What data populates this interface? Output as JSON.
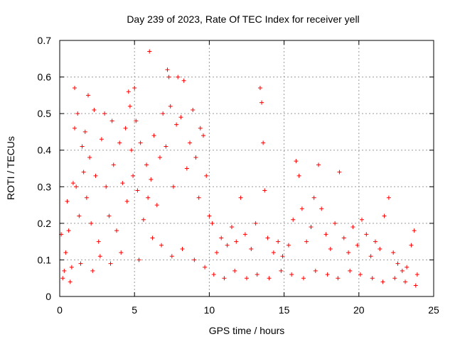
{
  "chart_data": {
    "type": "scatter",
    "title": "Day 239 of 2023, Rate Of TEC Index for receiver yell",
    "xlabel": "GPS time / hours",
    "ylabel": "ROTI / TECUs",
    "xlim": [
      0,
      25
    ],
    "ylim": [
      0,
      0.7
    ],
    "xticks": [
      "0",
      "5",
      "10",
      "15",
      "20",
      "25"
    ],
    "yticks": [
      "0",
      "0.1",
      "0.2",
      "0.3",
      "0.4",
      "0.5",
      "0.6",
      "0.7"
    ],
    "grid": true,
    "marker": "+",
    "color": "#ff0000",
    "series": [
      {
        "points": [
          [
            0.1,
            0.17
          ],
          [
            0.2,
            0.05
          ],
          [
            0.4,
            0.12
          ],
          [
            0.5,
            0.26
          ],
          [
            0.6,
            0.18
          ],
          [
            0.8,
            0.08
          ],
          [
            0.9,
            0.31
          ],
          [
            1.0,
            0.46
          ],
          [
            1.0,
            0.57
          ],
          [
            1.1,
            0.3
          ],
          [
            1.2,
            0.5
          ],
          [
            1.3,
            0.22
          ],
          [
            1.5,
            0.41
          ],
          [
            1.6,
            0.34
          ],
          [
            1.7,
            0.45
          ],
          [
            1.8,
            0.27
          ],
          [
            1.9,
            0.55
          ],
          [
            2.0,
            0.38
          ],
          [
            2.1,
            0.2
          ],
          [
            2.3,
            0.51
          ],
          [
            2.4,
            0.33
          ],
          [
            2.6,
            0.15
          ],
          [
            2.8,
            0.43
          ],
          [
            3.0,
            0.5
          ],
          [
            3.1,
            0.3
          ],
          [
            3.3,
            0.22
          ],
          [
            3.5,
            0.48
          ],
          [
            3.6,
            0.36
          ],
          [
            3.8,
            0.18
          ],
          [
            4.0,
            0.42
          ],
          [
            4.2,
            0.31
          ],
          [
            4.4,
            0.46
          ],
          [
            4.5,
            0.26
          ],
          [
            4.6,
            0.56
          ],
          [
            4.7,
            0.52
          ],
          [
            4.8,
            0.4
          ],
          [
            4.9,
            0.33
          ],
          [
            5.0,
            0.57
          ],
          [
            5.1,
            0.48
          ],
          [
            5.2,
            0.29
          ],
          [
            5.4,
            0.42
          ],
          [
            5.6,
            0.21
          ],
          [
            5.8,
            0.36
          ],
          [
            5.9,
            0.27
          ],
          [
            6.0,
            0.67
          ],
          [
            6.1,
            0.32
          ],
          [
            6.3,
            0.44
          ],
          [
            6.5,
            0.25
          ],
          [
            6.7,
            0.38
          ],
          [
            6.9,
            0.5
          ],
          [
            7.1,
            0.41
          ],
          [
            7.2,
            0.62
          ],
          [
            7.3,
            0.6
          ],
          [
            7.4,
            0.52
          ],
          [
            7.6,
            0.3
          ],
          [
            7.8,
            0.47
          ],
          [
            7.9,
            0.6
          ],
          [
            8.1,
            0.49
          ],
          [
            8.3,
            0.59
          ],
          [
            8.5,
            0.35
          ],
          [
            8.7,
            0.42
          ],
          [
            8.9,
            0.51
          ],
          [
            9.1,
            0.38
          ],
          [
            9.3,
            0.27
          ],
          [
            9.4,
            0.46
          ],
          [
            9.6,
            0.44
          ],
          [
            9.8,
            0.33
          ],
          [
            10.0,
            0.22
          ],
          [
            10.2,
            0.2
          ],
          [
            10.5,
            0.12
          ],
          [
            10.8,
            0.16
          ],
          [
            11.2,
            0.14
          ],
          [
            11.5,
            0.19
          ],
          [
            11.8,
            0.15
          ],
          [
            12.1,
            0.27
          ],
          [
            12.4,
            0.17
          ],
          [
            12.8,
            0.13
          ],
          [
            13.1,
            0.2
          ],
          [
            13.4,
            0.57
          ],
          [
            13.5,
            0.53
          ],
          [
            13.6,
            0.42
          ],
          [
            13.7,
            0.29
          ],
          [
            13.9,
            0.16
          ],
          [
            14.3,
            0.12
          ],
          [
            14.6,
            0.15
          ],
          [
            14.9,
            0.11
          ],
          [
            15.3,
            0.14
          ],
          [
            15.6,
            0.21
          ],
          [
            15.8,
            0.37
          ],
          [
            16.0,
            0.33
          ],
          [
            16.2,
            0.24
          ],
          [
            16.5,
            0.15
          ],
          [
            16.8,
            0.19
          ],
          [
            17.0,
            0.27
          ],
          [
            17.3,
            0.36
          ],
          [
            17.5,
            0.24
          ],
          [
            17.8,
            0.17
          ],
          [
            18.1,
            0.13
          ],
          [
            18.4,
            0.2
          ],
          [
            18.7,
            0.34
          ],
          [
            19.0,
            0.16
          ],
          [
            19.3,
            0.12
          ],
          [
            19.6,
            0.19
          ],
          [
            19.9,
            0.14
          ],
          [
            20.2,
            0.21
          ],
          [
            20.5,
            0.17
          ],
          [
            20.8,
            0.11
          ],
          [
            21.1,
            0.15
          ],
          [
            21.4,
            0.13
          ],
          [
            21.7,
            0.22
          ],
          [
            22.0,
            0.27
          ],
          [
            22.3,
            0.12
          ],
          [
            22.6,
            0.09
          ],
          [
            22.9,
            0.07
          ],
          [
            23.2,
            0.08
          ],
          [
            23.5,
            0.14
          ],
          [
            23.7,
            0.18
          ],
          [
            23.9,
            0.06
          ],
          [
            0.3,
            0.07
          ],
          [
            0.7,
            0.04
          ],
          [
            1.4,
            0.09
          ],
          [
            2.2,
            0.07
          ],
          [
            2.7,
            0.11
          ],
          [
            3.4,
            0.09
          ],
          [
            4.1,
            0.12
          ],
          [
            5.3,
            0.1
          ],
          [
            6.2,
            0.16
          ],
          [
            6.8,
            0.14
          ],
          [
            7.5,
            0.11
          ],
          [
            8.2,
            0.13
          ],
          [
            9.0,
            0.1
          ],
          [
            9.7,
            0.08
          ],
          [
            10.3,
            0.06
          ],
          [
            11.0,
            0.05
          ],
          [
            11.7,
            0.07
          ],
          [
            12.5,
            0.05
          ],
          [
            13.2,
            0.06
          ],
          [
            14.0,
            0.05
          ],
          [
            14.8,
            0.07
          ],
          [
            15.5,
            0.06
          ],
          [
            16.3,
            0.05
          ],
          [
            17.1,
            0.07
          ],
          [
            17.9,
            0.06
          ],
          [
            18.6,
            0.05
          ],
          [
            19.4,
            0.07
          ],
          [
            20.1,
            0.06
          ],
          [
            20.9,
            0.05
          ],
          [
            21.6,
            0.04
          ],
          [
            22.4,
            0.05
          ],
          [
            23.1,
            0.04
          ],
          [
            23.8,
            0.03
          ]
        ]
      }
    ]
  }
}
